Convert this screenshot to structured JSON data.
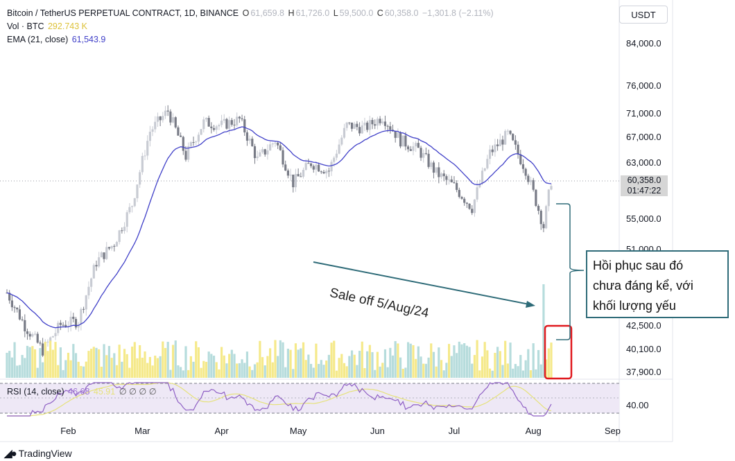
{
  "header": {
    "symbol": "Bitcoin / TetherUS PERPETUAL CONTRACT, 1D, BINANCE",
    "o_label": "O",
    "o_value": "61,659.8",
    "h_label": "H",
    "h_value": "61,726.0",
    "l_label": "L",
    "l_value": "59,500.0",
    "c_label": "C",
    "c_value": "60,358.0",
    "change": "−1,301.8 (−2.11%)",
    "vol_label": "Vol · BTC",
    "vol_value": "292.743 K",
    "ema_label": "EMA (21, close)",
    "ema_value": "61,543.9"
  },
  "currency": "USDT",
  "last_price": "60,358.0",
  "countdown": "01:47:22",
  "rsi": {
    "label": "RSI (14, close)",
    "value1": "46.68",
    "value2": "45.91",
    "icons": "∅ ∅ ∅ ∅"
  },
  "annotation": {
    "text_line1": "Hồi phục sau đó",
    "text_line2": "chưa đáng kể, với",
    "text_line3": "khối lượng yếu",
    "sale_label": "Sale off 5/Aug/24"
  },
  "branding": "TradingView",
  "colors": {
    "candle": "#787b86",
    "candle_light": "#c8cbd3",
    "ema": "#3f3fc8",
    "vol_yellow": "#f5e98a",
    "vol_teal": "#b6dcdc",
    "rsi": "#8e5fc4",
    "rsi_ma": "#e6e27a",
    "annot_border": "#2e6b78",
    "highlight": "#e0191e"
  },
  "chart_data": {
    "type": "candlestick",
    "title": "Bitcoin / TetherUS PERPETUAL CONTRACT, 1D, BINANCE",
    "x_labels": [
      "Feb",
      "Mar",
      "Apr",
      "May",
      "Jun",
      "Jul",
      "Aug",
      "Sep"
    ],
    "y_labels": [
      "84,000.0",
      "76,000.0",
      "71,000.0",
      "67,000.0",
      "63,000.0",
      "55,000.0",
      "51,000.0",
      "42,500.0",
      "40,100.0",
      "37,900.0"
    ],
    "rsi_labels": [
      "40.00"
    ],
    "approx_close_path": [
      {
        "date": "2024-01-08",
        "close": 46000
      },
      {
        "date": "2024-01-15",
        "close": 42500
      },
      {
        "date": "2024-01-22",
        "close": 40000
      },
      {
        "date": "2024-01-29",
        "close": 42600
      },
      {
        "date": "2024-02-05",
        "close": 43000
      },
      {
        "date": "2024-02-12",
        "close": 49500
      },
      {
        "date": "2024-02-19",
        "close": 51800
      },
      {
        "date": "2024-02-26",
        "close": 57000
      },
      {
        "date": "2024-03-04",
        "close": 68000
      },
      {
        "date": "2024-03-11",
        "close": 71500
      },
      {
        "date": "2024-03-18",
        "close": 64000
      },
      {
        "date": "2024-03-25",
        "close": 69500
      },
      {
        "date": "2024-04-01",
        "close": 69000
      },
      {
        "date": "2024-04-08",
        "close": 70000
      },
      {
        "date": "2024-04-15",
        "close": 63500
      },
      {
        "date": "2024-04-22",
        "close": 66500
      },
      {
        "date": "2024-04-29",
        "close": 60000
      },
      {
        "date": "2024-05-06",
        "close": 63000
      },
      {
        "date": "2024-05-13",
        "close": 61800
      },
      {
        "date": "2024-05-20",
        "close": 69000
      },
      {
        "date": "2024-05-27",
        "close": 68500
      },
      {
        "date": "2024-06-03",
        "close": 70500
      },
      {
        "date": "2024-06-10",
        "close": 66500
      },
      {
        "date": "2024-06-17",
        "close": 65000
      },
      {
        "date": "2024-06-24",
        "close": 61500
      },
      {
        "date": "2024-07-01",
        "close": 59500
      },
      {
        "date": "2024-07-08",
        "close": 56500
      },
      {
        "date": "2024-07-15",
        "close": 64500
      },
      {
        "date": "2024-07-22",
        "close": 67500
      },
      {
        "date": "2024-07-29",
        "close": 62000
      },
      {
        "date": "2024-08-05",
        "close": 54000
      },
      {
        "date": "2024-08-08",
        "close": 60358
      }
    ]
  }
}
